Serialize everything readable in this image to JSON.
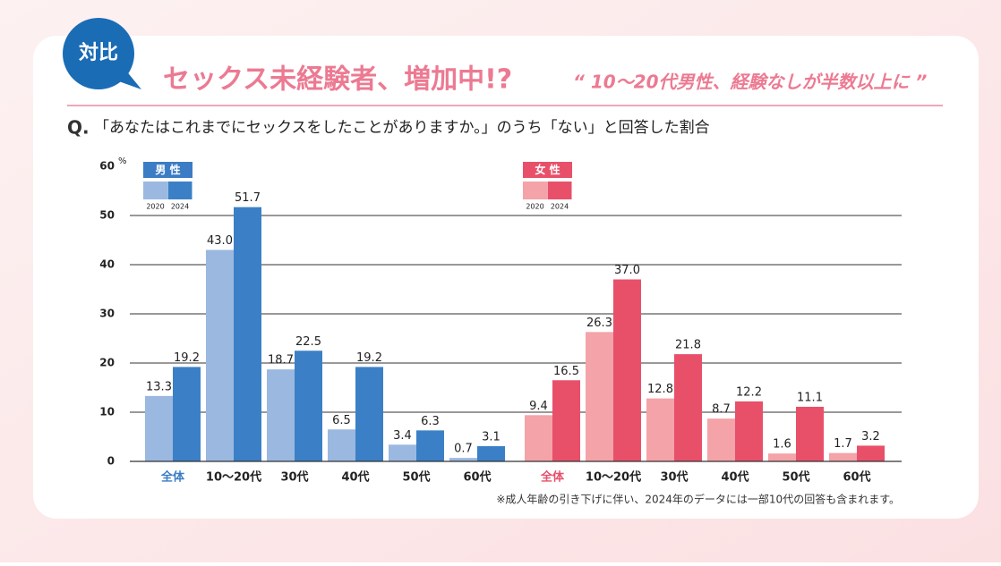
{
  "chart_data": {
    "type": "bar",
    "badge": "対比",
    "title": "セックス未経験者、増加中!?",
    "subtitle": "“ 10〜20代男性、経験なしが半数以上に ”",
    "question_mark": "Q.",
    "question": "「あなたはこれまでにセックスをしたことがありますか。」のうち「ない」と回答した割合",
    "y_unit": "%",
    "ylim": [
      0,
      60
    ],
    "yticks": [
      0,
      10,
      20,
      30,
      40,
      50,
      60
    ],
    "grid": true,
    "note": "※成人年齢の引き下げに伴い、2024年のデータには一部10代の回答も含まれます。",
    "groups": [
      {
        "name": "男 性",
        "color": "#3b7cc4",
        "categories": [
          "全体",
          "10〜20代",
          "30代",
          "40代",
          "50代",
          "60代"
        ],
        "series": [
          {
            "name": "2020",
            "color": "#9bb8e0",
            "values": [
              13.3,
              43.0,
              18.7,
              6.5,
              3.4,
              0.7
            ],
            "value_labels": [
              "13.3",
              "43.0",
              "18.7",
              "6.5",
              "3.4",
              "0.7"
            ]
          },
          {
            "name": "2024",
            "color": "#3b80c6",
            "values": [
              19.2,
              51.7,
              22.5,
              19.2,
              6.3,
              3.1
            ],
            "value_labels": [
              "19.2",
              "51.7",
              "22.5",
              "19.2",
              "6.3",
              "3.1"
            ]
          }
        ]
      },
      {
        "name": "女 性",
        "color": "#e8506a",
        "categories": [
          "全体",
          "10〜20代",
          "30代",
          "40代",
          "50代",
          "60代"
        ],
        "series": [
          {
            "name": "2020",
            "color": "#f4a3a8",
            "values": [
              9.4,
              26.3,
              12.8,
              8.7,
              1.6,
              1.7
            ],
            "value_labels": [
              "9.4",
              "26.3",
              "12.8",
              "8.7",
              "1.6",
              "1.7"
            ]
          },
          {
            "name": "2024",
            "color": "#e8506a",
            "values": [
              16.5,
              37.0,
              21.8,
              12.2,
              11.1,
              3.2
            ],
            "value_labels": [
              "16.5",
              "37.0",
              "21.8",
              "12.2",
              "11.1",
              "3.2"
            ]
          }
        ]
      }
    ]
  }
}
